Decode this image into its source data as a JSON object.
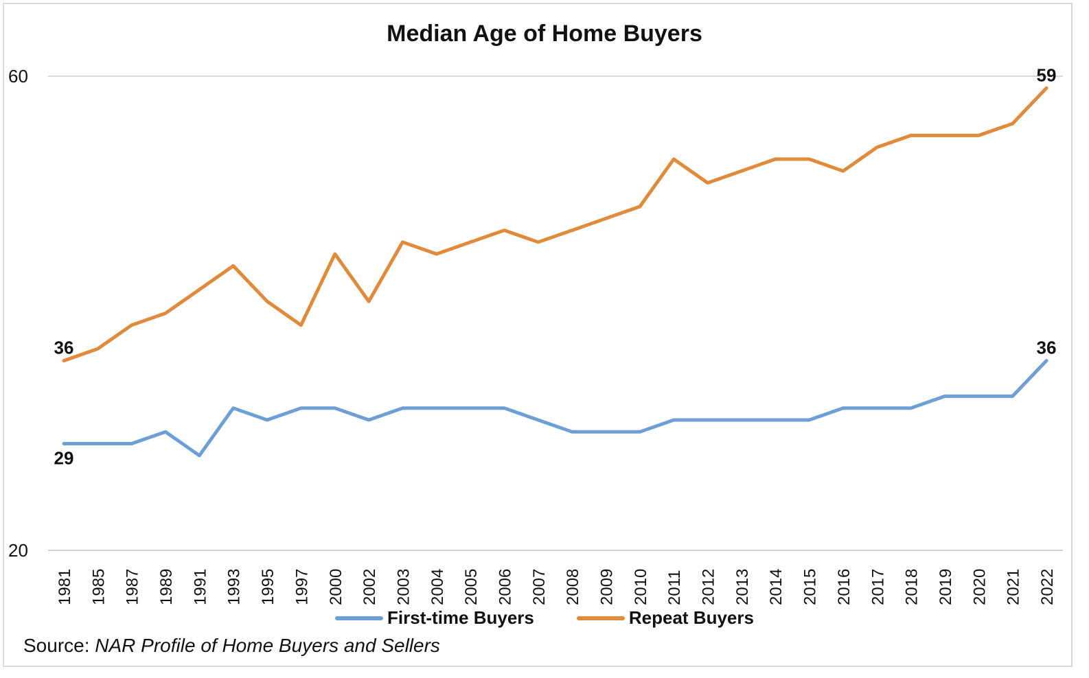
{
  "chart_data": {
    "type": "line",
    "title": "Median Age of Home Buyers",
    "source_prefix": "Source: ",
    "source_title": "NAR Profile of Home Buyers and Sellers",
    "xlabel": "",
    "ylabel": "",
    "ylim": [
      20,
      60
    ],
    "ytick_labels": [
      "60",
      "20"
    ],
    "grid": true,
    "legend_position": "bottom",
    "categories": [
      "1981",
      "1985",
      "1987",
      "1989",
      "1991",
      "1993",
      "1995",
      "1997",
      "2000",
      "2002",
      "2003",
      "2004",
      "2005",
      "2006",
      "2007",
      "2008",
      "2009",
      "2010",
      "2011",
      "2012",
      "2013",
      "2014",
      "2015",
      "2016",
      "2017",
      "2018",
      "2019",
      "2020",
      "2021",
      "2022"
    ],
    "series": [
      {
        "name": "First-time Buyers",
        "color": "#6e9fd4",
        "values": [
          29,
          29,
          29,
          30,
          28,
          32,
          31,
          32,
          32,
          31,
          32,
          32,
          32,
          32,
          31,
          30,
          30,
          30,
          31,
          31,
          31,
          31,
          31,
          32,
          32,
          32,
          33,
          33,
          33,
          36
        ],
        "data_labels": [
          {
            "index": 0,
            "text": "29",
            "pos": "below"
          },
          {
            "index": 29,
            "text": "36",
            "pos": "above"
          }
        ]
      },
      {
        "name": "Repeat Buyers",
        "color": "#e08a3c",
        "values": [
          36,
          37,
          39,
          40,
          42,
          44,
          41,
          39,
          45,
          41,
          46,
          45,
          46,
          47,
          46,
          47,
          48,
          49,
          53,
          51,
          52,
          53,
          53,
          52,
          54,
          55,
          55,
          55,
          56,
          59
        ],
        "data_labels": [
          {
            "index": 0,
            "text": "36",
            "pos": "above"
          },
          {
            "index": 29,
            "text": "59",
            "pos": "above"
          }
        ]
      }
    ]
  }
}
